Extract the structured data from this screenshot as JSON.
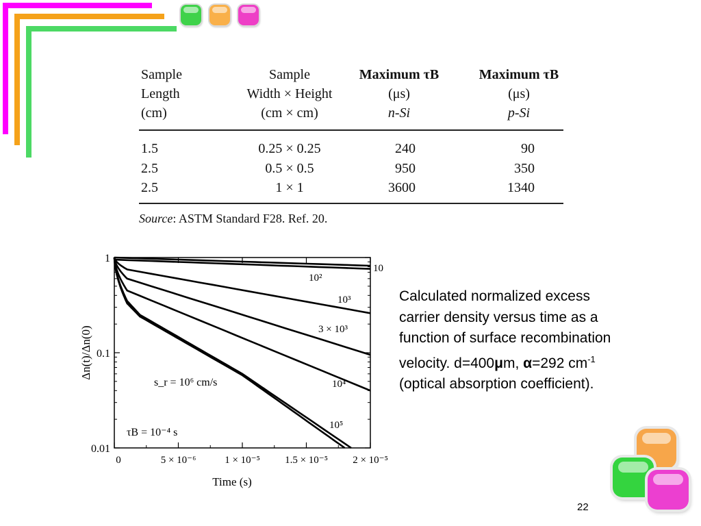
{
  "colors": {
    "magenta": "#ff00ff",
    "orange": "#f5a21a",
    "green": "#4cd964"
  },
  "table": {
    "headers": [
      [
        "Sample",
        "Length",
        "(cm)"
      ],
      [
        "Sample",
        "Width × Height",
        "(cm × cm)"
      ],
      [
        "Maximum τB",
        "(μs)",
        "n-Si"
      ],
      [
        "Maximum τB",
        "(μs)",
        "p-Si"
      ]
    ],
    "rows": [
      [
        "1.5",
        "0.25 × 0.25",
        "240",
        "90"
      ],
      [
        "2.5",
        "0.5 × 0.5",
        "950",
        "350"
      ],
      [
        "2.5",
        "1 × 1",
        "3600",
        "1340"
      ]
    ],
    "source_label": "Source",
    "source_text": ": ASTM Standard F28. Ref. 20."
  },
  "chart_data": {
    "type": "line",
    "title": "",
    "xlabel": "Time (s)",
    "ylabel": "Δn(t)/Δn(0)",
    "y_scale": "log",
    "xlim": [
      0,
      2e-05
    ],
    "ylim": [
      0.01,
      1
    ],
    "x_ticks": [
      "0",
      "5 × 10⁻⁶",
      "1 × 10⁻⁵",
      "1.5 × 10⁻⁵",
      "2 × 10⁻⁵"
    ],
    "y_ticks": [
      "0.01",
      "0.1",
      "1"
    ],
    "series": [
      {
        "name": "10",
        "x": [
          0,
          2e-05
        ],
        "y": [
          1,
          0.82
        ]
      },
      {
        "name": "10²",
        "x": [
          0,
          2e-05
        ],
        "y": [
          0.95,
          0.76
        ]
      },
      {
        "name": "10³",
        "x": [
          0,
          1e-06,
          2e-05
        ],
        "y": [
          1,
          0.75,
          0.26
        ]
      },
      {
        "name": "3 × 10³",
        "x": [
          0,
          1e-06,
          2e-05
        ],
        "y": [
          1,
          0.6,
          0.095
        ]
      },
      {
        "name": "10⁴",
        "x": [
          0,
          1e-06,
          2e-05
        ],
        "y": [
          1,
          0.45,
          0.04
        ]
      },
      {
        "name": "10⁵",
        "x": [
          0,
          1e-06,
          2e-06,
          1e-05,
          1.85e-05
        ],
        "y": [
          1,
          0.35,
          0.25,
          0.06,
          0.01
        ]
      },
      {
        "name": "s_r = 10⁶ cm/s",
        "x": [
          0,
          1e-06,
          2e-06,
          1e-05,
          1.8e-05
        ],
        "y": [
          1,
          0.33,
          0.24,
          0.058,
          0.01
        ]
      }
    ],
    "annotations": [
      "s_r = 10⁶ cm/s",
      "τB = 10⁻⁴ s"
    ],
    "grid": false
  },
  "caption": {
    "line1": "Calculated normalized excess",
    "line2": "carrier density versus time as a",
    "line3": "function of surface recombination",
    "line4_a": "velocity. d=400",
    "line4_mu": "μ",
    "line4_b": "m, ",
    "line4_alpha": "α",
    "line4_c": "=292 cm",
    "line4_sup": "-1",
    "line5": "(optical absorption coefficient)."
  },
  "page_number": "22"
}
